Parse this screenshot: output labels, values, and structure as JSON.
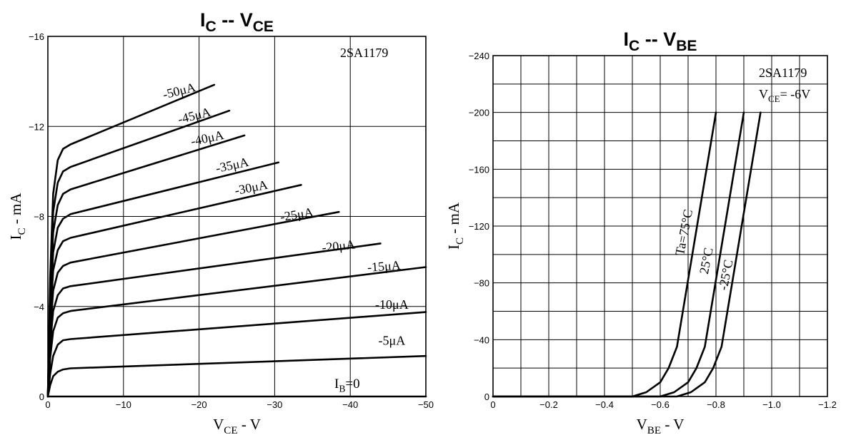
{
  "chart_data": [
    {
      "type": "line",
      "title": {
        "main": "I",
        "sub": "C",
        "sep": "--",
        "main2": "V",
        "sub2": "CE"
      },
      "device_label": "2SA1179",
      "xlabel": {
        "main": "V",
        "sub": "CE",
        "rest": " - V"
      },
      "ylabel": {
        "main": "I",
        "sub": "C",
        "rest": " - mA"
      },
      "xlim": [
        0,
        -50
      ],
      "ylim": [
        0,
        -16
      ],
      "xticks": [
        0,
        -10,
        -20,
        -30,
        -40,
        -50
      ],
      "xtick_labels": [
        "0",
        "−10",
        "−20",
        "−30",
        "−40",
        "−50"
      ],
      "yticks": [
        0,
        -4,
        -8,
        -12,
        -16
      ],
      "ytick_labels": [
        "0",
        "−4",
        "−8",
        "−12",
        "−16"
      ],
      "grid": true,
      "series": [
        {
          "name": "I_B=0",
          "x": [
            0,
            -50
          ],
          "y": [
            0,
            0
          ]
        },
        {
          "name": "-5μA",
          "x": [
            0,
            -0.3,
            -0.7,
            -1.3,
            -2,
            -3,
            -50
          ],
          "y": [
            0,
            -0.5,
            -0.9,
            -1.1,
            -1.2,
            -1.25,
            -1.8
          ]
        },
        {
          "name": "-10μA",
          "x": [
            0,
            -0.3,
            -0.7,
            -1.3,
            -2,
            -3,
            -50
          ],
          "y": [
            0,
            -1.0,
            -1.8,
            -2.3,
            -2.5,
            -2.55,
            -3.75
          ]
        },
        {
          "name": "-15μA",
          "x": [
            0,
            -0.3,
            -0.7,
            -1.3,
            -2,
            -3,
            -50
          ],
          "y": [
            0,
            -1.7,
            -2.9,
            -3.5,
            -3.7,
            -3.8,
            -5.75
          ]
        },
        {
          "name": "-20μA",
          "x": [
            0,
            -0.3,
            -0.7,
            -1.3,
            -2,
            -3,
            -44
          ],
          "y": [
            0,
            -2.3,
            -3.8,
            -4.5,
            -4.8,
            -4.9,
            -6.8
          ]
        },
        {
          "name": "-25μA",
          "x": [
            0,
            -0.3,
            -0.7,
            -1.3,
            -2,
            -3,
            -38.5
          ],
          "y": [
            0,
            -2.8,
            -4.7,
            -5.5,
            -5.8,
            -5.95,
            -8.2
          ]
        },
        {
          "name": "-30μA",
          "x": [
            0,
            -0.3,
            -0.7,
            -1.3,
            -2,
            -3,
            -33.5
          ],
          "y": [
            0,
            -3.3,
            -5.6,
            -6.5,
            -6.9,
            -7.05,
            -9.4
          ]
        },
        {
          "name": "-35μA",
          "x": [
            0,
            -0.3,
            -0.7,
            -1.3,
            -2,
            -3,
            -30.5
          ],
          "y": [
            0,
            -3.8,
            -6.4,
            -7.5,
            -7.9,
            -8.1,
            -10.4
          ]
        },
        {
          "name": "-40μA",
          "x": [
            0,
            -0.3,
            -0.7,
            -1.3,
            -2,
            -3,
            -26
          ],
          "y": [
            0,
            -4.3,
            -7.3,
            -8.5,
            -9.0,
            -9.2,
            -11.6
          ]
        },
        {
          "name": "-45μA",
          "x": [
            0,
            -0.3,
            -0.7,
            -1.3,
            -2,
            -3,
            -24
          ],
          "y": [
            0,
            -4.8,
            -8.2,
            -9.5,
            -10.0,
            -10.2,
            -12.7
          ]
        },
        {
          "name": "-50μA",
          "x": [
            0,
            -0.3,
            -0.7,
            -1.3,
            -2,
            -3,
            -22
          ],
          "y": [
            0,
            -5.3,
            -9.0,
            -10.5,
            -11.0,
            -11.2,
            -13.85
          ]
        }
      ],
      "labels": [
        {
          "text": "-50μA",
          "x": -17.5,
          "y": -13.4,
          "angle": -14
        },
        {
          "text": "-45μA",
          "x": -19.5,
          "y": -12.3,
          "angle": -14
        },
        {
          "text": "-40μA",
          "x": -21.2,
          "y": -11.3,
          "angle": -12
        },
        {
          "text": "-35μA",
          "x": -24.5,
          "y": -10.1,
          "angle": -12
        },
        {
          "text": "-30μA",
          "x": -27,
          "y": -9.1,
          "angle": -11
        },
        {
          "text": "-25μA",
          "x": -33,
          "y": -7.9,
          "angle": -9
        },
        {
          "text": "-20μA",
          "x": -38.5,
          "y": -6.5,
          "angle": -6
        },
        {
          "text": "-15μA",
          "x": -44.5,
          "y": -5.6,
          "angle": -4
        },
        {
          "text": "-10μA",
          "x": -45.5,
          "y": -3.9,
          "angle": 0
        },
        {
          "text": "-5μA",
          "x": -45.5,
          "y": -2.3,
          "angle": 0
        }
      ],
      "ib0_label": {
        "main": "I",
        "sub": "B",
        "rest": "=0"
      }
    },
    {
      "type": "line",
      "title": {
        "main": "I",
        "sub": "C",
        "sep": "--",
        "main2": "V",
        "sub2": "BE"
      },
      "device_label": "2SA1179",
      "condition_label": {
        "main": "V",
        "sub": "CE",
        "rest": "= -6V"
      },
      "xlabel": {
        "main": "V",
        "sub": "BE",
        "rest": " - V"
      },
      "ylabel": {
        "main": "I",
        "sub": "C",
        "rest": " - mA"
      },
      "xlim": [
        0,
        -1.2
      ],
      "ylim": [
        0,
        -240
      ],
      "xticks": [
        0,
        -0.2,
        -0.4,
        -0.6,
        -0.8,
        -1.0,
        -1.2
      ],
      "xtick_labels": [
        "0",
        "−0.2",
        "−0.4",
        "−0.6",
        "−0.8",
        "−1.0",
        "−1.2"
      ],
      "yticks": [
        0,
        -40,
        -80,
        -120,
        -160,
        -200,
        -240
      ],
      "ytick_labels": [
        "0",
        "−40",
        "−80",
        "−120",
        "−160",
        "−200",
        "−240"
      ],
      "grid": true,
      "series": [
        {
          "name": "Ta=75°C",
          "x": [
            0,
            -0.5,
            -0.55,
            -0.6,
            -0.63,
            -0.66,
            -0.8
          ],
          "y": [
            0,
            0,
            -3,
            -10,
            -20,
            -35,
            -200
          ]
        },
        {
          "name": "25°C",
          "x": [
            0,
            -0.6,
            -0.65,
            -0.7,
            -0.73,
            -0.76,
            -0.9
          ],
          "y": [
            0,
            0,
            -3,
            -10,
            -20,
            -35,
            -200
          ]
        },
        {
          "name": "-25°C",
          "x": [
            0,
            -0.66,
            -0.71,
            -0.76,
            -0.79,
            -0.82,
            -0.96
          ],
          "y": [
            0,
            0,
            -3,
            -10,
            -20,
            -35,
            -200
          ]
        }
      ],
      "labels": [
        {
          "text": "Ta=75°C",
          "x": -0.7,
          "y": -115,
          "angle": -79
        },
        {
          "text": "25°C",
          "x": -0.78,
          "y": -95,
          "angle": -79
        },
        {
          "text": "-25°C",
          "x": -0.85,
          "y": -85,
          "angle": -79
        }
      ]
    }
  ]
}
